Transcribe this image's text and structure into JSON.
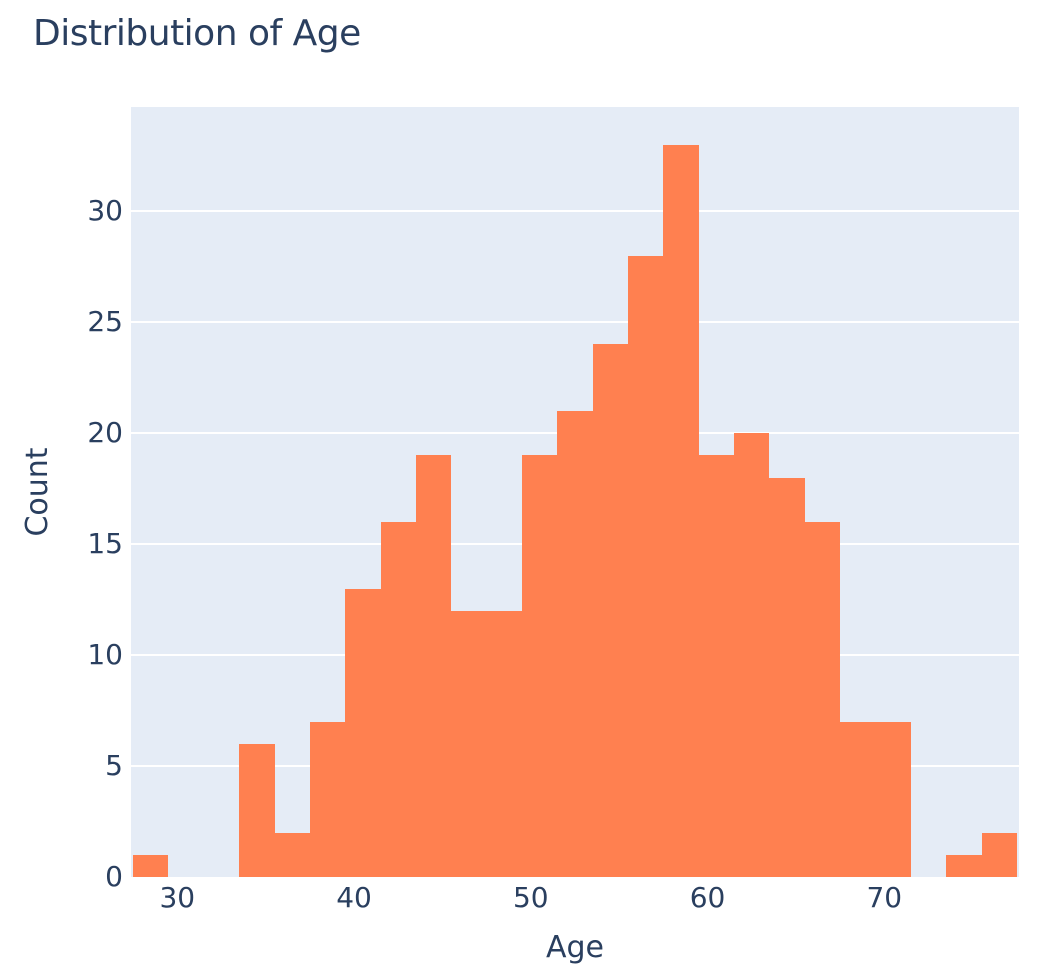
{
  "title": {
    "text": "Distribution of Age"
  },
  "chart_data": {
    "type": "bar",
    "subtype": "histogram",
    "title": "Distribution of Age",
    "xlabel": "Age",
    "ylabel": "Count",
    "bin_size": 2,
    "bin_edges": [
      27.5,
      29.5,
      31.5,
      33.5,
      35.5,
      37.5,
      39.5,
      41.5,
      43.5,
      45.5,
      47.5,
      49.5,
      51.5,
      53.5,
      55.5,
      57.5,
      59.5,
      61.5,
      63.5,
      65.5,
      67.5,
      69.5,
      71.5,
      73.5,
      75.5,
      77.5
    ],
    "counts": [
      1,
      0,
      0,
      6,
      2,
      7,
      13,
      16,
      19,
      12,
      12,
      19,
      21,
      24,
      28,
      33,
      19,
      20,
      18,
      16,
      7,
      7,
      0,
      1,
      2
    ],
    "x_ticks": [
      30,
      40,
      50,
      60,
      70
    ],
    "y_ticks": [
      0,
      5,
      10,
      15,
      20,
      25,
      30
    ],
    "xlim": [
      27.38,
      77.62
    ],
    "ylim": [
      0,
      34.7
    ],
    "grid": "horizontal",
    "legend_position": "none",
    "colors": {
      "bar": "#ff8050",
      "plot_background": "#e5ecf6",
      "grid": "#ffffff",
      "text": "#2a3f5f"
    }
  }
}
